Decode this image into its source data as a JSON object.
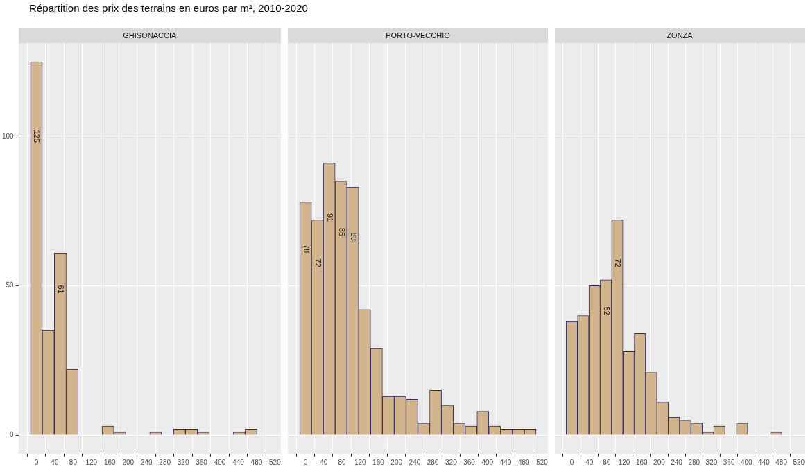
{
  "chart_data": [
    {
      "type": "histogram",
      "title": "Répartition des prix des terrains en euros par m², 2010-2020",
      "subtitle": "GHISONACCIA",
      "bins": [
        -13,
        13,
        39,
        65,
        91,
        117,
        143,
        169,
        195,
        221,
        247,
        273,
        299,
        325,
        351,
        377,
        403,
        429,
        455,
        481,
        507
      ],
      "values": [
        125,
        35,
        61,
        22,
        0,
        0,
        3,
        1,
        0,
        0,
        1,
        0,
        2,
        2,
        1,
        0,
        0,
        1,
        2,
        0
      ],
      "value_labels": [
        "125",
        null,
        "61",
        null,
        null,
        null,
        null,
        null,
        null,
        null,
        null,
        null,
        null,
        null,
        null,
        null,
        null,
        null,
        null,
        null
      ],
      "color": "#d2b48c",
      "xlim": [
        -39,
        533
      ],
      "ylim": [
        -6.25,
        131.25
      ],
      "xticks": [
        0,
        40,
        80,
        120,
        160,
        200,
        240,
        280,
        320,
        360,
        400,
        440,
        480,
        520
      ],
      "yticks": [
        0,
        50,
        100
      ],
      "grid": true
    },
    {
      "type": "histogram",
      "subtitle": "PORTO-VECCHIO",
      "bins": [
        -13,
        13,
        39,
        65,
        91,
        117,
        143,
        169,
        195,
        221,
        247,
        273,
        299,
        325,
        351,
        377,
        403,
        429,
        455,
        481,
        507
      ],
      "values": [
        78,
        72,
        91,
        85,
        83,
        42,
        29,
        13,
        13,
        12,
        4,
        15,
        10,
        4,
        3,
        8,
        3,
        2,
        2,
        2
      ],
      "value_labels": [
        "78",
        "72",
        "91",
        "85",
        "83",
        null,
        null,
        null,
        null,
        null,
        null,
        null,
        null,
        null,
        null,
        null,
        null,
        null,
        null,
        null
      ],
      "color": "#d2b48c",
      "xlim": [
        -39,
        533
      ],
      "ylim": [
        -6.25,
        131.25
      ],
      "xticks": [
        0,
        40,
        80,
        120,
        160,
        200,
        240,
        280,
        320,
        360,
        400,
        440,
        480,
        520
      ],
      "yticks": [
        0,
        50,
        100
      ],
      "grid": true,
      "tick_labels": "x"
    },
    {
      "type": "histogram",
      "subtitle": "ZONZA",
      "bins": [
        -13,
        13,
        39,
        65,
        91,
        117,
        143,
        169,
        195,
        221,
        247,
        273,
        299,
        325,
        351,
        377,
        403,
        429,
        455,
        481,
        507
      ],
      "values": [
        38,
        40,
        50,
        52,
        72,
        28,
        34,
        21,
        11,
        6,
        5,
        4,
        1,
        3,
        0,
        4,
        0,
        0,
        1,
        0
      ],
      "value_labels": [
        null,
        null,
        null,
        "52",
        "72",
        null,
        null,
        null,
        null,
        null,
        null,
        null,
        null,
        null,
        null,
        null,
        null,
        null,
        null,
        null
      ],
      "color": "#d2b48c",
      "xlim": [
        -39,
        533
      ],
      "ylim": [
        -6.25,
        131.25
      ],
      "xticks": [
        0,
        40,
        80,
        120,
        160,
        200,
        240,
        280,
        320,
        360,
        400,
        440,
        480,
        520
      ],
      "yticks": [
        0,
        50,
        100
      ],
      "grid": true,
      "tick_labels": "x"
    }
  ]
}
